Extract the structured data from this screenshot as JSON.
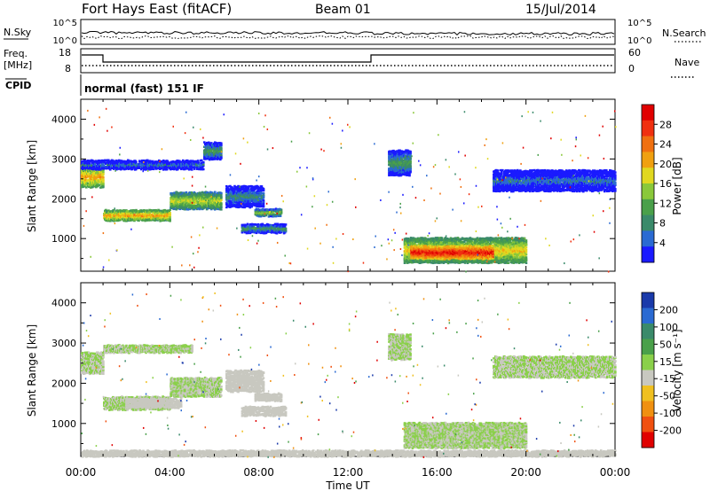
{
  "header": {
    "station": "Fort Hays East (fitACF)",
    "beam": "Beam 01",
    "date": "15/Jul/2014"
  },
  "noise_panel": {
    "left_label": "N.Sky",
    "right_label": "N.Search",
    "left_ticks": [
      "10^5",
      "10^0"
    ],
    "right_ticks": [
      "10^5",
      "10^0"
    ]
  },
  "freq_panel": {
    "left_label_line1": "Freq.",
    "left_label_line2": "[MHz]",
    "right_label": "Nave",
    "left_ticks": [
      "18",
      "8"
    ],
    "right_ticks": [
      "60",
      "0"
    ]
  },
  "cpid": {
    "label": "CPID",
    "value": "normal (fast) 151 IF"
  },
  "chart_data": [
    {
      "type": "heatmap",
      "name": "power",
      "ylabel": "Slant Range [km]",
      "xlabel": "Time UT",
      "xlim": [
        0,
        24
      ],
      "ylim": [
        180,
        4500
      ],
      "x_ticks": [
        "00:00",
        "04:00",
        "08:00",
        "12:00",
        "16:00",
        "20:00",
        "00:00"
      ],
      "y_ticks": [
        1000,
        2000,
        3000,
        4000
      ],
      "colorbar": {
        "label": "Power [dB]",
        "ticks": [
          "4",
          "8",
          "12",
          "16",
          "20",
          "24",
          "28"
        ],
        "range": [
          0,
          30
        ],
        "colors": [
          "#1a1aff",
          "#2a6ad2",
          "#3a8a6a",
          "#4aa04a",
          "#8ac83a",
          "#e0d820",
          "#f0a010",
          "#f07010",
          "#f03010",
          "#e00000"
        ]
      },
      "features": [
        {
          "t0": 0.0,
          "t1": 1.0,
          "r_mid": 2550,
          "r_half": 250,
          "val": 20
        },
        {
          "t0": 1.0,
          "t1": 4.0,
          "r_mid": 1580,
          "r_half": 120,
          "val": 20
        },
        {
          "t0": 4.0,
          "t1": 6.3,
          "r_mid": 1950,
          "r_half": 200,
          "val": 16
        },
        {
          "t0": 0.0,
          "t1": 5.5,
          "r_mid": 2850,
          "r_half": 100,
          "val": 6
        },
        {
          "t0": 5.5,
          "t1": 6.3,
          "r_mid": 3200,
          "r_half": 200,
          "val": 10
        },
        {
          "t0": 6.5,
          "t1": 8.2,
          "r_mid": 2050,
          "r_half": 250,
          "val": 8
        },
        {
          "t0": 7.8,
          "t1": 9.0,
          "r_mid": 1650,
          "r_half": 80,
          "val": 14
        },
        {
          "t0": 7.2,
          "t1": 9.2,
          "r_mid": 1250,
          "r_half": 100,
          "val": 10
        },
        {
          "t0": 13.8,
          "t1": 14.8,
          "r_mid": 2900,
          "r_half": 300,
          "val": 10
        },
        {
          "t0": 14.5,
          "t1": 20.0,
          "r_mid": 700,
          "r_half": 300,
          "val": 18
        },
        {
          "t0": 14.8,
          "t1": 18.5,
          "r_mid": 650,
          "r_half": 150,
          "val": 28
        },
        {
          "t0": 18.5,
          "t1": 24.0,
          "r_mid": 2450,
          "r_half": 250,
          "val": 6
        }
      ]
    },
    {
      "type": "heatmap",
      "name": "velocity",
      "ylabel": "Slant Range [km]",
      "xlabel": "Time UT",
      "xlim": [
        0,
        24
      ],
      "ylim": [
        180,
        4500
      ],
      "x_ticks": [
        "00:00",
        "04:00",
        "08:00",
        "12:00",
        "16:00",
        "20:00",
        "00:00"
      ],
      "y_ticks": [
        1000,
        2000,
        3000,
        4000
      ],
      "colorbar": {
        "label": "Velocity [m s⁻¹]",
        "ticks": [
          "200",
          "100",
          "50",
          "15",
          "-15",
          "-50",
          "-100",
          "-200"
        ],
        "range": [
          -250,
          250
        ],
        "colors": [
          "#1a3aaa",
          "#2a6ad2",
          "#3a8a6a",
          "#4aa04a",
          "#8ad04a",
          "#c8c8c0",
          "#f0c020",
          "#f09010",
          "#f05010",
          "#e00000"
        ]
      },
      "features": [
        {
          "t0": 0.0,
          "t1": 1.0,
          "r_mid": 2500,
          "r_half": 250,
          "val": 0
        },
        {
          "t0": 1.0,
          "t1": 4.0,
          "r_mid": 1500,
          "r_half": 150,
          "val": 0
        },
        {
          "t0": 4.0,
          "t1": 6.3,
          "r_mid": 1900,
          "r_half": 220,
          "val": 0
        },
        {
          "t0": 1.0,
          "t1": 5.0,
          "r_mid": 2850,
          "r_half": 80,
          "val": 0
        },
        {
          "t0": 2.0,
          "t1": 4.5,
          "r_mid": 1500,
          "r_half": 100,
          "val": 40
        },
        {
          "t0": 6.5,
          "t1": 8.2,
          "r_mid": 2050,
          "r_half": 250,
          "val": 30
        },
        {
          "t0": 7.8,
          "t1": 9.0,
          "r_mid": 1650,
          "r_half": 80,
          "val": 35
        },
        {
          "t0": 7.2,
          "t1": 9.2,
          "r_mid": 1300,
          "r_half": 100,
          "val": 40
        },
        {
          "t0": 13.8,
          "t1": 14.8,
          "r_mid": 2900,
          "r_half": 300,
          "val": 0
        },
        {
          "t0": 14.5,
          "t1": 20.0,
          "r_mid": 700,
          "r_half": 300,
          "val": 0
        },
        {
          "t0": 18.5,
          "t1": 24.0,
          "r_mid": 2400,
          "r_half": 250,
          "val": 0
        },
        {
          "t0": 0.0,
          "t1": 24.0,
          "r_mid": 250,
          "r_half": 60,
          "val": 25
        }
      ]
    }
  ]
}
